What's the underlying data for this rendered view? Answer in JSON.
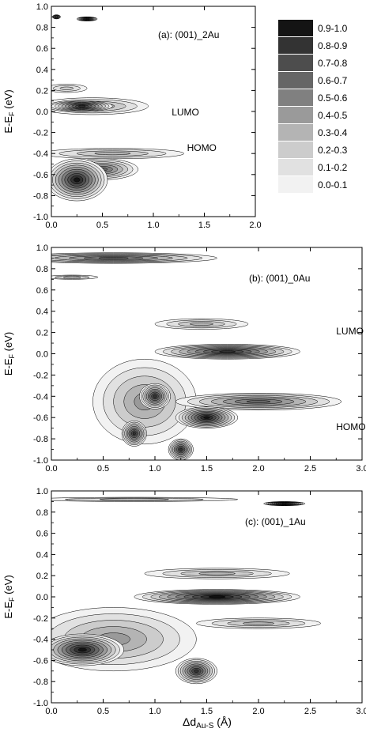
{
  "colors": {
    "axis": "#000000",
    "levels": [
      "#f2f2f2",
      "#e1e1e1",
      "#cccccc",
      "#b4b4b4",
      "#9a9a9a",
      "#808080",
      "#666666",
      "#4d4d4d",
      "#333333",
      "#141414"
    ]
  },
  "legend": {
    "entries": [
      "0.9-1.0",
      "0.8-0.9",
      "0.7-0.8",
      "0.6-0.7",
      "0.5-0.6",
      "0.4-0.5",
      "0.3-0.4",
      "0.2-0.3",
      "0.1-0.2",
      "0.0-0.1"
    ]
  },
  "shared_ylabel": {
    "main": "E-E",
    "sub": "F",
    "unit": " (eV)"
  },
  "shared_xlabel": {
    "main": "Δd",
    "sub": "Au-S",
    "unit": " (Å)"
  },
  "chart_data": [
    {
      "type": "contour",
      "title": "(a): (001)_2Au",
      "xlim": [
        0.0,
        2.0
      ],
      "ylim": [
        -1.0,
        1.0
      ],
      "xticks": [
        "0.0",
        "0.5",
        "1.0",
        "1.5",
        "2.0"
      ],
      "yticks": [
        "1.0",
        "0.8",
        "0.6",
        "0.4",
        "0.2",
        "0.0",
        "-0.2",
        "-0.4",
        "-0.6",
        "-0.8",
        "-1.0"
      ],
      "annotations": [
        {
          "text": "LUMO",
          "x": 1.18,
          "y": 0.0
        },
        {
          "text": "HOMO",
          "x": 1.33,
          "y": -0.34
        }
      ],
      "features": [
        {
          "x": 0.35,
          "y": 0.88,
          "sx": 0.1,
          "sy": 0.02,
          "level": 0.95
        },
        {
          "x": 0.05,
          "y": 0.9,
          "sx": 0.04,
          "sy": 0.02,
          "level": 0.8
        },
        {
          "x": 0.15,
          "y": 0.22,
          "sx": 0.2,
          "sy": 0.04,
          "level": 0.3
        },
        {
          "x": 0.4,
          "y": 0.05,
          "sx": 0.55,
          "sy": 0.08,
          "level": 0.5
        },
        {
          "x": 0.3,
          "y": 0.05,
          "sx": 0.3,
          "sy": 0.05,
          "level": 0.9
        },
        {
          "x": 0.6,
          "y": -0.4,
          "sx": 0.7,
          "sy": 0.05,
          "level": 0.4
        },
        {
          "x": 0.25,
          "y": -0.65,
          "sx": 0.3,
          "sy": 0.2,
          "level": 0.95
        },
        {
          "x": 0.5,
          "y": -0.55,
          "sx": 0.35,
          "sy": 0.1,
          "level": 0.7
        }
      ]
    },
    {
      "type": "contour",
      "title": "(b): (001)_0Au",
      "xlim": [
        0.0,
        3.0
      ],
      "ylim": [
        -1.0,
        1.0
      ],
      "xticks": [
        "0.0",
        "0.5",
        "1.0",
        "1.5",
        "2.0",
        "2.5",
        "3.0"
      ],
      "yticks": [
        "1.0",
        "0.8",
        "0.6",
        "0.4",
        "0.2",
        "0.0",
        "-0.2",
        "-0.4",
        "-0.6",
        "-0.8",
        "-1.0"
      ],
      "annotations": [
        {
          "text": "LUMO",
          "x": 2.75,
          "y": 0.22
        },
        {
          "text": "HOMO",
          "x": 2.75,
          "y": -0.68
        }
      ],
      "features": [
        {
          "x": 0.6,
          "y": 0.9,
          "sx": 1.0,
          "sy": 0.05,
          "level": 0.7
        },
        {
          "x": 0.2,
          "y": 0.72,
          "sx": 0.25,
          "sy": 0.02,
          "level": 0.3
        },
        {
          "x": 1.45,
          "y": 0.28,
          "sx": 0.45,
          "sy": 0.05,
          "level": 0.4
        },
        {
          "x": 1.7,
          "y": 0.02,
          "sx": 0.7,
          "sy": 0.07,
          "level": 0.9
        },
        {
          "x": 0.9,
          "y": -0.45,
          "sx": 0.5,
          "sy": 0.4,
          "level": 0.5
        },
        {
          "x": 1.0,
          "y": -0.4,
          "sx": 0.15,
          "sy": 0.12,
          "level": 0.9
        },
        {
          "x": 0.8,
          "y": -0.75,
          "sx": 0.12,
          "sy": 0.12,
          "level": 0.9
        },
        {
          "x": 1.25,
          "y": -0.9,
          "sx": 0.12,
          "sy": 0.1,
          "level": 0.9
        },
        {
          "x": 1.5,
          "y": -0.6,
          "sx": 0.3,
          "sy": 0.1,
          "level": 0.95
        },
        {
          "x": 2.0,
          "y": -0.45,
          "sx": 0.8,
          "sy": 0.08,
          "level": 0.7
        }
      ]
    },
    {
      "type": "contour",
      "title": "(c): (001)_1Au",
      "xlim": [
        0.0,
        3.0
      ],
      "ylim": [
        -1.0,
        1.0
      ],
      "xticks": [
        "0.0",
        "0.5",
        "1.0",
        "1.5",
        "2.0",
        "2.5",
        "3.0"
      ],
      "yticks": [
        "1.0",
        "0.8",
        "0.6",
        "0.4",
        "0.2",
        "0.0",
        "-0.2",
        "-0.4",
        "-0.6",
        "-0.8",
        "-1.0"
      ],
      "annotations": [],
      "features": [
        {
          "x": 0.8,
          "y": 0.92,
          "sx": 1.0,
          "sy": 0.02,
          "level": 0.3
        },
        {
          "x": 2.25,
          "y": 0.88,
          "sx": 0.2,
          "sy": 0.02,
          "level": 0.95
        },
        {
          "x": 1.6,
          "y": 0.22,
          "sx": 0.7,
          "sy": 0.05,
          "level": 0.4
        },
        {
          "x": 1.6,
          "y": 0.0,
          "sx": 0.8,
          "sy": 0.07,
          "level": 0.95
        },
        {
          "x": 0.6,
          "y": -0.4,
          "sx": 0.8,
          "sy": 0.3,
          "level": 0.5
        },
        {
          "x": 0.3,
          "y": -0.5,
          "sx": 0.4,
          "sy": 0.15,
          "level": 0.95
        },
        {
          "x": 1.4,
          "y": -0.7,
          "sx": 0.2,
          "sy": 0.12,
          "level": 0.9
        },
        {
          "x": 2.0,
          "y": -0.25,
          "sx": 0.6,
          "sy": 0.05,
          "level": 0.4
        }
      ]
    }
  ]
}
